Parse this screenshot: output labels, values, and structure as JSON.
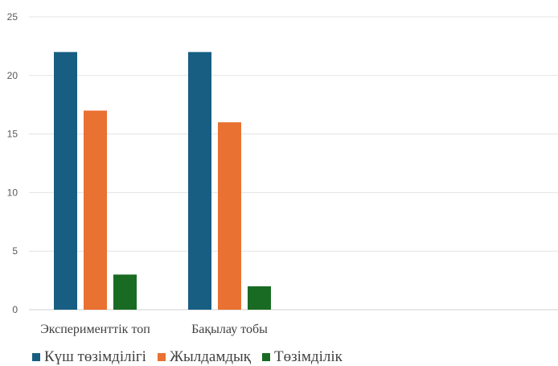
{
  "chart_data": {
    "type": "bar",
    "categories": [
      "Эксперименттік топ",
      "Бақылау тобы"
    ],
    "series": [
      {
        "name": "Күш төзімділігі",
        "values": [
          22,
          22
        ],
        "color": "#175e82"
      },
      {
        "name": "Жылдамдық",
        "values": [
          17,
          16
        ],
        "color": "#e97132"
      },
      {
        "name": "Төзімділік",
        "values": [
          3,
          2
        ],
        "color": "#196b24"
      }
    ],
    "ylim": [
      0,
      25
    ],
    "yticks": [
      "0",
      "5",
      "10",
      "15",
      "20",
      "25"
    ],
    "grid": true,
    "legend_position": "bottom-left"
  }
}
